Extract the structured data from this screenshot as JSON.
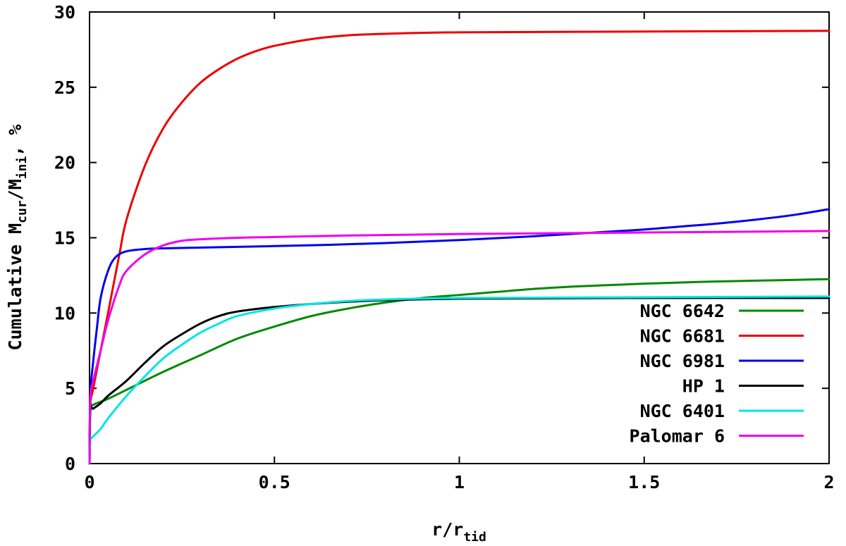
{
  "chart_data": {
    "type": "line",
    "xlabel": {
      "main": "r/r",
      "sub": "tid"
    },
    "ylabel": {
      "pre": "Cumulative M",
      "sub1": "cur",
      "mid": "/M",
      "sub2": "ini",
      "post": ", %"
    },
    "xlim": [
      0,
      2
    ],
    "ylim": [
      0,
      30
    ],
    "x_ticks": [
      {
        "value": 0,
        "label": "0"
      },
      {
        "value": 0.5,
        "label": "0.5"
      },
      {
        "value": 1,
        "label": "1"
      },
      {
        "value": 1.5,
        "label": "1.5"
      },
      {
        "value": 2,
        "label": "2"
      }
    ],
    "y_ticks": [
      {
        "value": 0,
        "label": "0"
      },
      {
        "value": 5,
        "label": "5"
      },
      {
        "value": 10,
        "label": "10"
      },
      {
        "value": 15,
        "label": "15"
      },
      {
        "value": 20,
        "label": "20"
      },
      {
        "value": 25,
        "label": "25"
      },
      {
        "value": 30,
        "label": "30"
      }
    ],
    "grid": false,
    "legend_position": "right",
    "series": [
      {
        "name": "NGC 6642",
        "color": "#008a00",
        "points": [
          [
            0,
            0
          ],
          [
            0.002,
            3.6
          ],
          [
            0.01,
            3.9
          ],
          [
            0.05,
            4.3
          ],
          [
            0.1,
            4.9
          ],
          [
            0.2,
            6.1
          ],
          [
            0.3,
            7.2
          ],
          [
            0.4,
            8.3
          ],
          [
            0.5,
            9.1
          ],
          [
            0.6,
            9.8
          ],
          [
            0.7,
            10.3
          ],
          [
            0.8,
            10.7
          ],
          [
            0.9,
            11.0
          ],
          [
            1.0,
            11.2
          ],
          [
            1.1,
            11.4
          ],
          [
            1.2,
            11.6
          ],
          [
            1.3,
            11.75
          ],
          [
            1.4,
            11.85
          ],
          [
            1.5,
            11.95
          ],
          [
            1.6,
            12.03
          ],
          [
            1.7,
            12.1
          ],
          [
            1.8,
            12.15
          ],
          [
            1.9,
            12.2
          ],
          [
            2.0,
            12.25
          ]
        ]
      },
      {
        "name": "NGC 6681",
        "color": "#ee0000",
        "points": [
          [
            0,
            0
          ],
          [
            0.002,
            3.8
          ],
          [
            0.01,
            5.0
          ],
          [
            0.03,
            7.5
          ],
          [
            0.05,
            10.0
          ],
          [
            0.08,
            13.8
          ],
          [
            0.1,
            16.2
          ],
          [
            0.15,
            19.8
          ],
          [
            0.2,
            22.3
          ],
          [
            0.25,
            24.0
          ],
          [
            0.3,
            25.3
          ],
          [
            0.35,
            26.2
          ],
          [
            0.4,
            26.9
          ],
          [
            0.45,
            27.4
          ],
          [
            0.5,
            27.75
          ],
          [
            0.6,
            28.2
          ],
          [
            0.7,
            28.45
          ],
          [
            0.8,
            28.55
          ],
          [
            1.0,
            28.65
          ],
          [
            1.5,
            28.7
          ],
          [
            2.0,
            28.75
          ]
        ]
      },
      {
        "name": "NGC 6981",
        "color": "#0000ee",
        "points": [
          [
            0,
            0
          ],
          [
            0.002,
            4.5
          ],
          [
            0.01,
            6.8
          ],
          [
            0.02,
            9.0
          ],
          [
            0.03,
            11.0
          ],
          [
            0.05,
            12.8
          ],
          [
            0.07,
            13.7
          ],
          [
            0.1,
            14.1
          ],
          [
            0.15,
            14.25
          ],
          [
            0.2,
            14.3
          ],
          [
            0.4,
            14.4
          ],
          [
            0.6,
            14.5
          ],
          [
            0.8,
            14.65
          ],
          [
            1.0,
            14.85
          ],
          [
            1.2,
            15.1
          ],
          [
            1.4,
            15.4
          ],
          [
            1.5,
            15.55
          ],
          [
            1.6,
            15.75
          ],
          [
            1.7,
            15.95
          ],
          [
            1.8,
            16.2
          ],
          [
            1.9,
            16.5
          ],
          [
            2.0,
            16.9
          ]
        ]
      },
      {
        "name": "HP 1",
        "color": "#000000",
        "points": [
          [
            0,
            0
          ],
          [
            0.002,
            3.5
          ],
          [
            0.01,
            3.65
          ],
          [
            0.03,
            4.0
          ],
          [
            0.05,
            4.5
          ],
          [
            0.1,
            5.5
          ],
          [
            0.15,
            6.7
          ],
          [
            0.2,
            7.8
          ],
          [
            0.25,
            8.6
          ],
          [
            0.3,
            9.3
          ],
          [
            0.35,
            9.8
          ],
          [
            0.4,
            10.1
          ],
          [
            0.5,
            10.4
          ],
          [
            0.6,
            10.6
          ],
          [
            0.7,
            10.75
          ],
          [
            0.8,
            10.85
          ],
          [
            1.0,
            10.95
          ],
          [
            1.5,
            11.0
          ],
          [
            2.0,
            11.0
          ]
        ]
      },
      {
        "name": "NGC 6401",
        "color": "#00e5e5",
        "points": [
          [
            0,
            0
          ],
          [
            0.002,
            1.5
          ],
          [
            0.01,
            1.8
          ],
          [
            0.03,
            2.3
          ],
          [
            0.05,
            3.0
          ],
          [
            0.1,
            4.5
          ],
          [
            0.15,
            5.8
          ],
          [
            0.2,
            7.0
          ],
          [
            0.25,
            7.9
          ],
          [
            0.3,
            8.7
          ],
          [
            0.35,
            9.3
          ],
          [
            0.4,
            9.8
          ],
          [
            0.5,
            10.3
          ],
          [
            0.6,
            10.6
          ],
          [
            0.7,
            10.8
          ],
          [
            0.8,
            10.9
          ],
          [
            1.0,
            11.0
          ],
          [
            1.5,
            11.05
          ],
          [
            2.0,
            11.1
          ]
        ]
      },
      {
        "name": "Palomar 6",
        "color": "#ee00ee",
        "points": [
          [
            0,
            0
          ],
          [
            0.002,
            4.3
          ],
          [
            0.01,
            5.5
          ],
          [
            0.03,
            7.5
          ],
          [
            0.05,
            9.5
          ],
          [
            0.08,
            11.8
          ],
          [
            0.1,
            12.8
          ],
          [
            0.15,
            13.9
          ],
          [
            0.2,
            14.5
          ],
          [
            0.25,
            14.8
          ],
          [
            0.3,
            14.9
          ],
          [
            0.4,
            15.0
          ],
          [
            0.5,
            15.05
          ],
          [
            0.7,
            15.15
          ],
          [
            1.0,
            15.25
          ],
          [
            1.5,
            15.35
          ],
          [
            2.0,
            15.45
          ]
        ]
      }
    ]
  }
}
